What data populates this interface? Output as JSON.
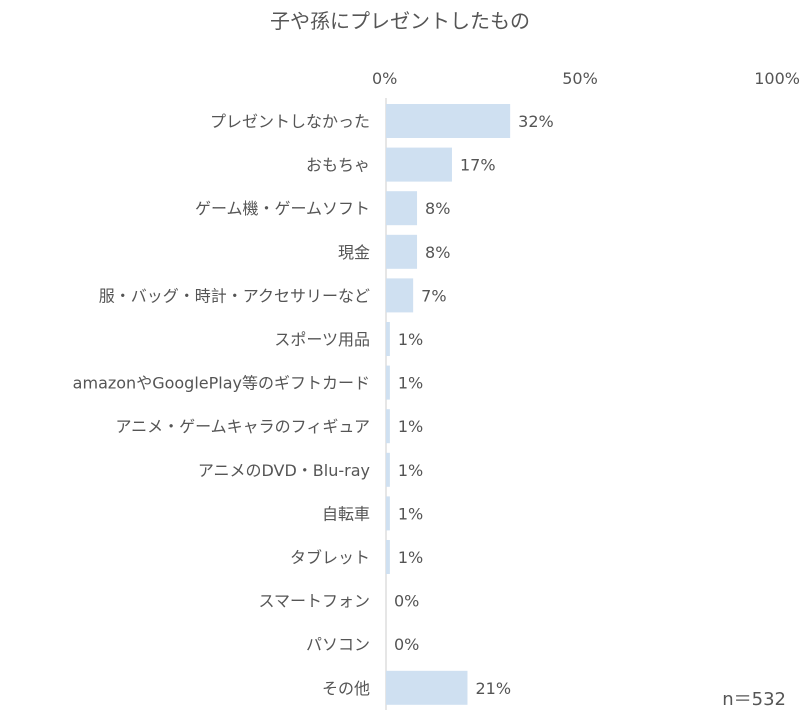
{
  "chart_data": {
    "type": "bar",
    "orientation": "horizontal",
    "title": "子や孫にプレゼントしたもの",
    "categories": [
      "プレゼントしなかった",
      "おもちゃ",
      "ゲーム機・ゲームソフト",
      "現金",
      "服・バッグ・時計・アクセサリーなど",
      "スポーツ用品",
      "amazonやGooglePlay等のギフトカード",
      "アニメ・ゲームキャラのフィギュア",
      "アニメのDVD・Blu-ray",
      "自転車",
      "タブレット",
      "スマートフォン",
      "パソコン",
      "その他"
    ],
    "values": [
      32,
      17,
      8,
      8,
      7,
      1,
      1,
      1,
      1,
      1,
      1,
      0,
      0,
      21
    ],
    "value_labels": [
      "32%",
      "17%",
      "8%",
      "8%",
      "7%",
      "1%",
      "1%",
      "1%",
      "1%",
      "1%",
      "1%",
      "0%",
      "0%",
      "21%"
    ],
    "x_ticks": [
      "0%",
      "50%",
      "100%"
    ],
    "xlim": [
      0,
      100
    ],
    "grid": false,
    "legend": "none",
    "bar_color": "#cfe0f1",
    "note": "n＝532"
  }
}
